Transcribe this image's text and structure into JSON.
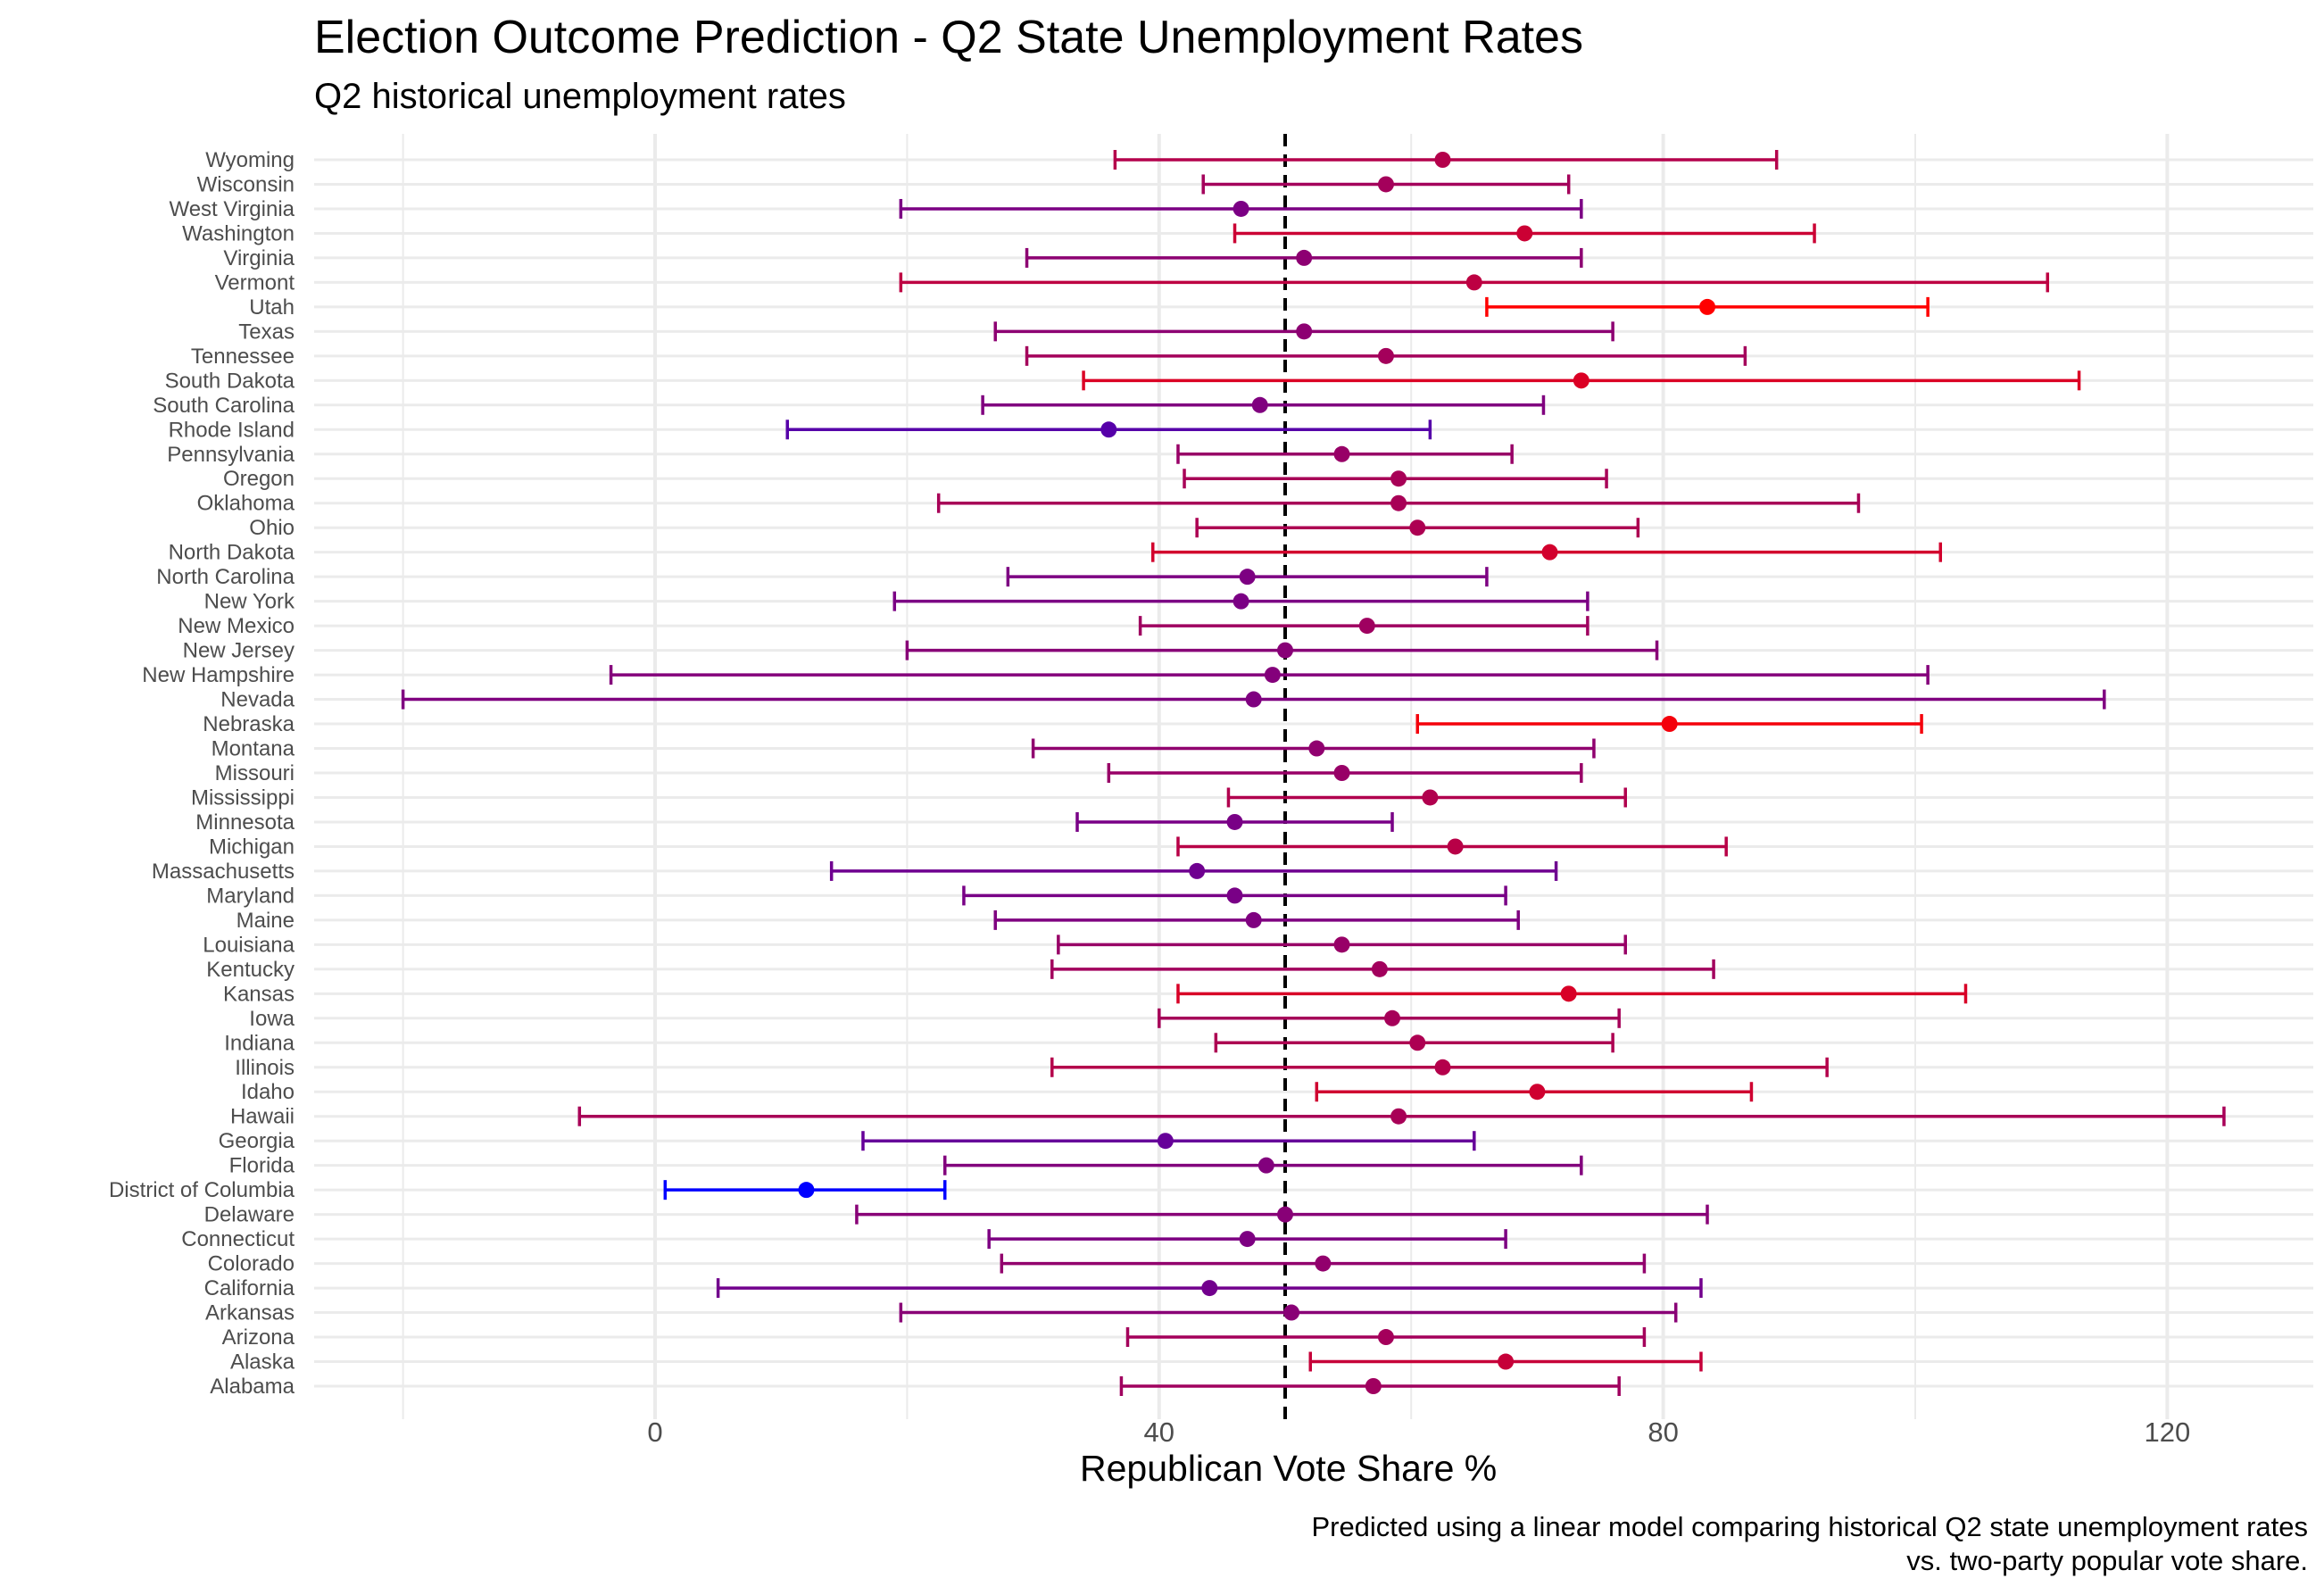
{
  "chart_data": {
    "type": "scatter",
    "title": "Election Outcome Prediction - Q2 State Unemployment Rates",
    "subtitle": "Q2 historical unemployment rates",
    "xlabel": "Republican Vote Share %",
    "ylabel": "",
    "caption_lines": [
      "Predicted using a linear model comparing historical Q2 state unemployment rates",
      "vs. two-party popular vote share."
    ],
    "xlim": [
      -27,
      131.5
    ],
    "x_ticks": [
      0,
      40,
      80,
      120
    ],
    "reference_line_x": 50,
    "grid": true,
    "legend": "none",
    "colors": {
      "low": "#0000ff",
      "high": "#ff0000",
      "reference_line": "#000000",
      "grid": "#ebebeb"
    },
    "points": [
      {
        "state": "Wyoming",
        "estimate": 62.5,
        "lower": 36.5,
        "upper": 89.0
      },
      {
        "state": "Wisconsin",
        "estimate": 58.0,
        "lower": 43.5,
        "upper": 72.5
      },
      {
        "state": "West Virginia",
        "estimate": 46.5,
        "lower": 19.5,
        "upper": 73.5
      },
      {
        "state": "Washington",
        "estimate": 69.0,
        "lower": 46.0,
        "upper": 92.0
      },
      {
        "state": "Virginia",
        "estimate": 51.5,
        "lower": 29.5,
        "upper": 73.5
      },
      {
        "state": "Vermont",
        "estimate": 65.0,
        "lower": 19.5,
        "upper": 110.5
      },
      {
        "state": "Utah",
        "estimate": 83.5,
        "lower": 66.0,
        "upper": 101.0
      },
      {
        "state": "Texas",
        "estimate": 51.5,
        "lower": 27.0,
        "upper": 76.0
      },
      {
        "state": "Tennessee",
        "estimate": 58.0,
        "lower": 29.5,
        "upper": 86.5
      },
      {
        "state": "South Dakota",
        "estimate": 73.5,
        "lower": 34.0,
        "upper": 113.0
      },
      {
        "state": "South Carolina",
        "estimate": 48.0,
        "lower": 26.0,
        "upper": 70.5
      },
      {
        "state": "Rhode Island",
        "estimate": 36.0,
        "lower": 10.5,
        "upper": 61.5
      },
      {
        "state": "Pennsylvania",
        "estimate": 54.5,
        "lower": 41.5,
        "upper": 68.0
      },
      {
        "state": "Oregon",
        "estimate": 59.0,
        "lower": 42.0,
        "upper": 75.5
      },
      {
        "state": "Oklahoma",
        "estimate": 59.0,
        "lower": 22.5,
        "upper": 95.5
      },
      {
        "state": "Ohio",
        "estimate": 60.5,
        "lower": 43.0,
        "upper": 78.0
      },
      {
        "state": "North Dakota",
        "estimate": 71.0,
        "lower": 39.5,
        "upper": 102.0
      },
      {
        "state": "North Carolina",
        "estimate": 47.0,
        "lower": 28.0,
        "upper": 66.0
      },
      {
        "state": "New York",
        "estimate": 46.5,
        "lower": 19.0,
        "upper": 74.0
      },
      {
        "state": "New Mexico",
        "estimate": 56.5,
        "lower": 38.5,
        "upper": 74.0
      },
      {
        "state": "New Jersey",
        "estimate": 50.0,
        "lower": 20.0,
        "upper": 79.5
      },
      {
        "state": "New Hampshire",
        "estimate": 49.0,
        "lower": -3.5,
        "upper": 101.0
      },
      {
        "state": "Nevada",
        "estimate": 47.5,
        "lower": -20.0,
        "upper": 115.0
      },
      {
        "state": "Nebraska",
        "estimate": 80.5,
        "lower": 60.5,
        "upper": 100.5
      },
      {
        "state": "Montana",
        "estimate": 52.5,
        "lower": 30.0,
        "upper": 74.5
      },
      {
        "state": "Missouri",
        "estimate": 54.5,
        "lower": 36.0,
        "upper": 73.5
      },
      {
        "state": "Mississippi",
        "estimate": 61.5,
        "lower": 45.5,
        "upper": 77.0
      },
      {
        "state": "Minnesota",
        "estimate": 46.0,
        "lower": 33.5,
        "upper": 58.5
      },
      {
        "state": "Michigan",
        "estimate": 63.5,
        "lower": 41.5,
        "upper": 85.0
      },
      {
        "state": "Massachusetts",
        "estimate": 43.0,
        "lower": 14.0,
        "upper": 71.5
      },
      {
        "state": "Maryland",
        "estimate": 46.0,
        "lower": 24.5,
        "upper": 67.5
      },
      {
        "state": "Maine",
        "estimate": 47.5,
        "lower": 27.0,
        "upper": 68.5
      },
      {
        "state": "Louisiana",
        "estimate": 54.5,
        "lower": 32.0,
        "upper": 77.0
      },
      {
        "state": "Kentucky",
        "estimate": 57.5,
        "lower": 31.5,
        "upper": 84.0
      },
      {
        "state": "Kansas",
        "estimate": 72.5,
        "lower": 41.5,
        "upper": 104.0
      },
      {
        "state": "Iowa",
        "estimate": 58.5,
        "lower": 40.0,
        "upper": 76.5
      },
      {
        "state": "Indiana",
        "estimate": 60.5,
        "lower": 44.5,
        "upper": 76.0
      },
      {
        "state": "Illinois",
        "estimate": 62.5,
        "lower": 31.5,
        "upper": 93.0
      },
      {
        "state": "Idaho",
        "estimate": 70.0,
        "lower": 52.5,
        "upper": 87.0
      },
      {
        "state": "Hawaii",
        "estimate": 59.0,
        "lower": -6.0,
        "upper": 124.5
      },
      {
        "state": "Georgia",
        "estimate": 40.5,
        "lower": 16.5,
        "upper": 65.0
      },
      {
        "state": "Florida",
        "estimate": 48.5,
        "lower": 23.0,
        "upper": 73.5
      },
      {
        "state": "District of Columbia",
        "estimate": 12.0,
        "lower": 0.8,
        "upper": 23.0
      },
      {
        "state": "Delaware",
        "estimate": 50.0,
        "lower": 16.0,
        "upper": 83.5
      },
      {
        "state": "Connecticut",
        "estimate": 47.0,
        "lower": 26.5,
        "upper": 67.5
      },
      {
        "state": "Colorado",
        "estimate": 53.0,
        "lower": 27.5,
        "upper": 78.5
      },
      {
        "state": "California",
        "estimate": 44.0,
        "lower": 5.0,
        "upper": 83.0
      },
      {
        "state": "Arkansas",
        "estimate": 50.5,
        "lower": 19.5,
        "upper": 81.0
      },
      {
        "state": "Arizona",
        "estimate": 58.0,
        "lower": 37.5,
        "upper": 78.5
      },
      {
        "state": "Alaska",
        "estimate": 67.5,
        "lower": 52.0,
        "upper": 83.0
      },
      {
        "state": "Alabama",
        "estimate": 57.0,
        "lower": 37.0,
        "upper": 76.5
      }
    ]
  }
}
